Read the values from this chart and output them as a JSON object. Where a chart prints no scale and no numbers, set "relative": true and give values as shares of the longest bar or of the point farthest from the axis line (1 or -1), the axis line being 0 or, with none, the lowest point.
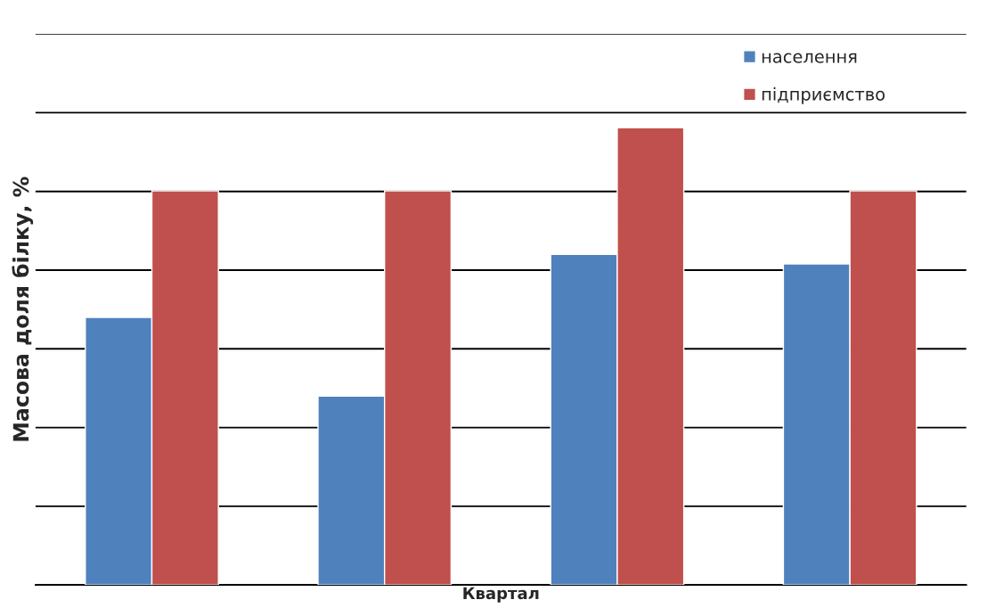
{
  "chart_data": {
    "type": "bar",
    "relative": true,
    "xlabel": "Квартал",
    "ylabel": "Масова доля білку, %",
    "categories": [
      null,
      null,
      null,
      null
    ],
    "series": [
      {
        "name": "населення",
        "color": "#4f81bd",
        "values": [
          0.585,
          0.413,
          0.723,
          0.702
        ]
      },
      {
        "name": "підприємство",
        "color": "#c0504d",
        "values": [
          0.862,
          0.862,
          1,
          0.862
        ]
      }
    ],
    "grid": "y",
    "legend": "top right"
  }
}
